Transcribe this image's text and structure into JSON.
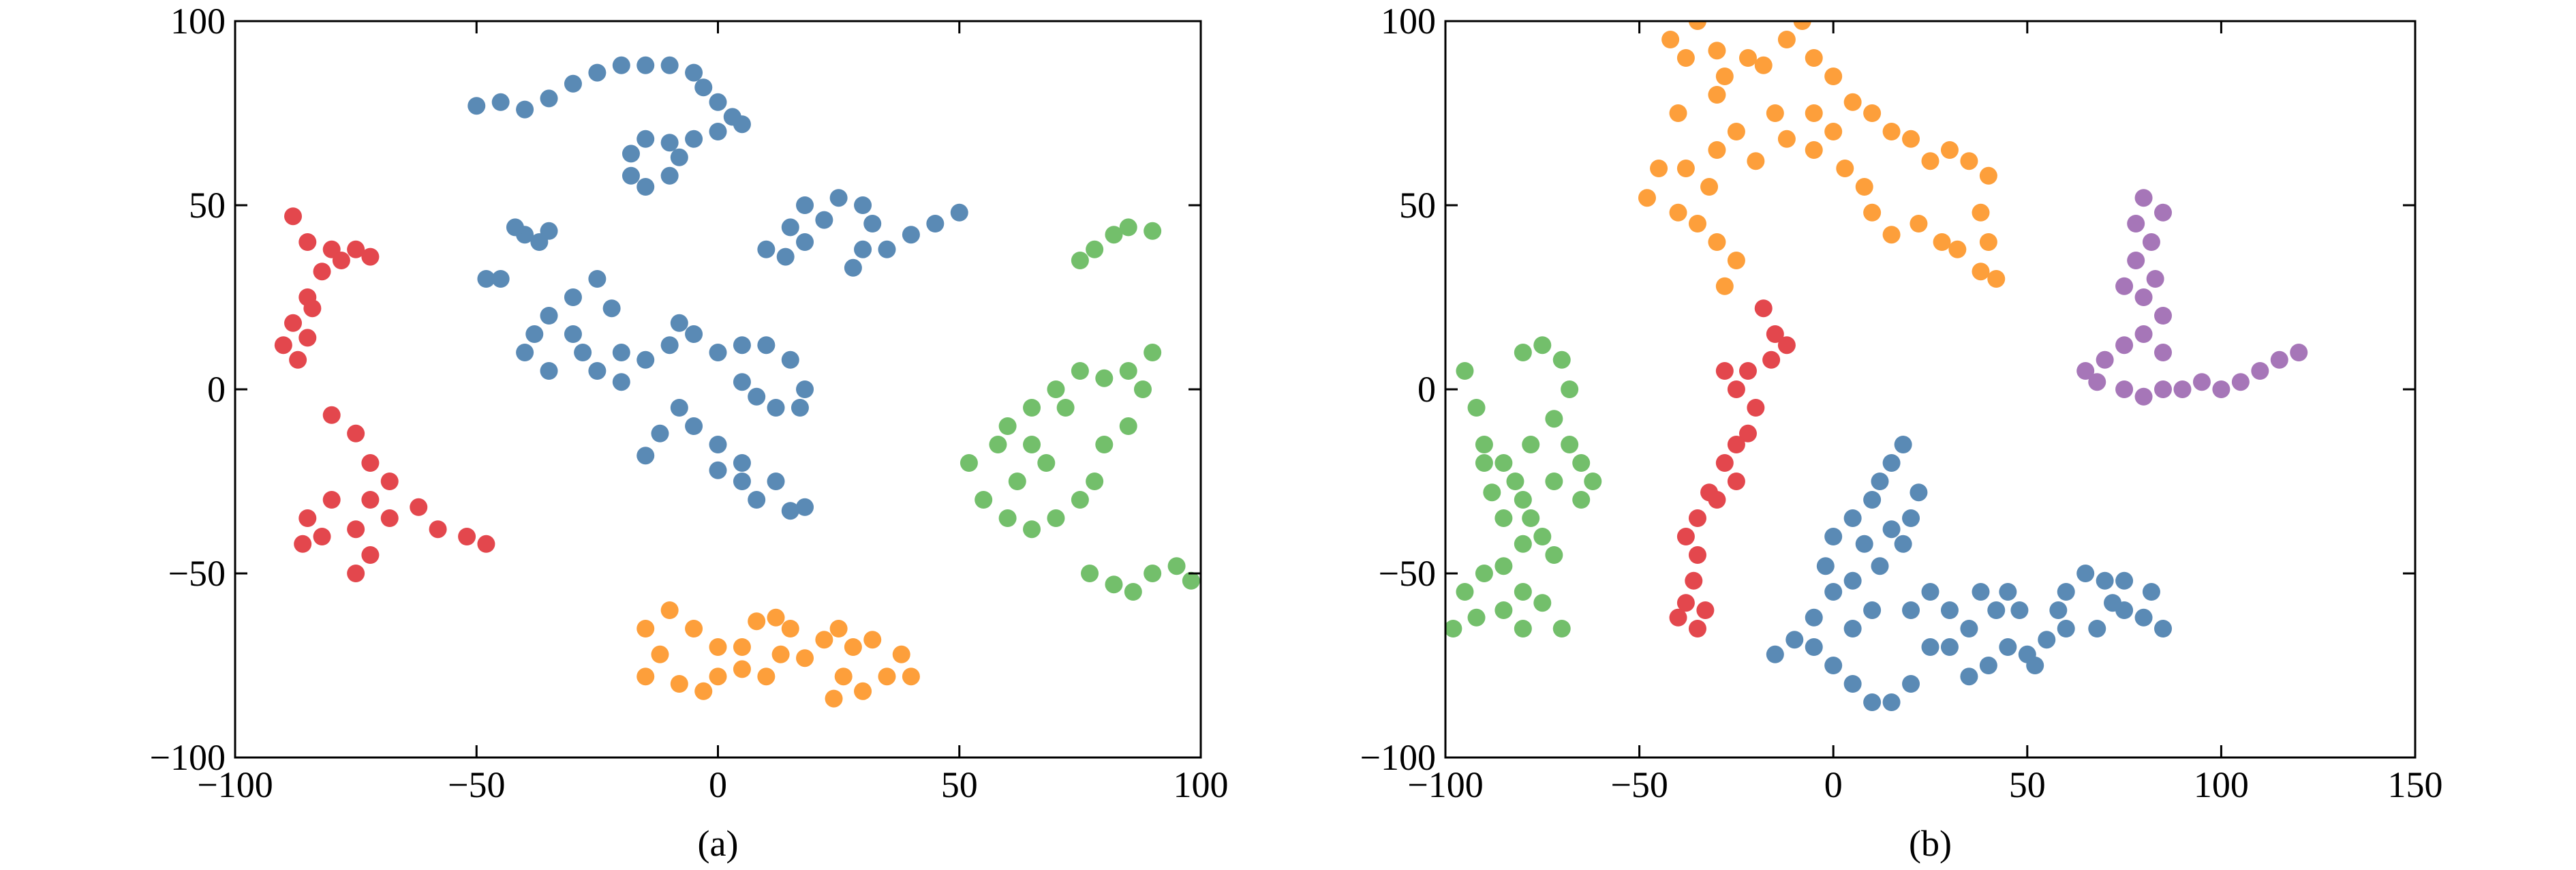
{
  "chart_data": [
    {
      "type": "scatter",
      "caption": "(a)",
      "xlim": [
        -100,
        100
      ],
      "ylim": [
        -100,
        100
      ],
      "xticks": [
        {
          "value": -100,
          "label": "−100"
        },
        {
          "value": -50,
          "label": "−50"
        },
        0,
        50,
        100
      ],
      "yticks": [
        {
          "value": -100,
          "label": "−100"
        },
        {
          "value": -50,
          "label": "−50"
        },
        0,
        50,
        100
      ],
      "series": [
        {
          "color": "#5a8ab5",
          "x": [
            -50,
            -45,
            -40,
            -35,
            -30,
            -25,
            -20,
            -15,
            -10,
            -5,
            -3,
            0,
            3,
            5,
            0,
            -5,
            -10,
            -15,
            -18,
            -18,
            -15,
            -10,
            -8,
            -40,
            -37,
            -35,
            -42,
            -48,
            -45,
            -40,
            -38,
            -35,
            -30,
            -25,
            -22,
            -28,
            -25,
            -20,
            -15,
            -10,
            -8,
            -5,
            0,
            5,
            10,
            15,
            18,
            17,
            12,
            8,
            5,
            -35,
            -30,
            -20,
            -15,
            -12,
            -8,
            -5,
            0,
            0,
            5,
            8,
            15,
            18,
            12,
            5,
            10,
            15,
            18,
            22,
            18,
            14,
            25,
            30,
            32,
            30,
            28,
            35,
            40,
            45,
            50
          ],
          "y": [
            77,
            78,
            76,
            79,
            83,
            86,
            88,
            88,
            88,
            86,
            82,
            78,
            74,
            72,
            70,
            68,
            67,
            68,
            64,
            58,
            55,
            58,
            63,
            42,
            40,
            43,
            44,
            30,
            30,
            10,
            15,
            20,
            25,
            30,
            22,
            10,
            5,
            2,
            8,
            12,
            18,
            15,
            10,
            12,
            12,
            8,
            0,
            -5,
            -5,
            -2,
            2,
            5,
            15,
            10,
            -18,
            -12,
            -5,
            -10,
            -15,
            -22,
            -25,
            -30,
            -33,
            -32,
            -25,
            -20,
            38,
            44,
            50,
            46,
            40,
            36,
            52,
            50,
            45,
            38,
            33,
            38,
            42,
            45,
            48
          ]
        },
        {
          "color": "#e3474d",
          "x": [
            -88,
            -85,
            -80,
            -78,
            -75,
            -72,
            -82,
            -85,
            -88,
            -90,
            -87,
            -85,
            -84,
            -80,
            -75,
            -72,
            -68,
            -72,
            -80,
            -85,
            -86,
            -82,
            -75,
            -72,
            -75,
            -68,
            -62,
            -58,
            -52,
            -48
          ],
          "y": [
            47,
            40,
            38,
            35,
            38,
            36,
            32,
            25,
            18,
            12,
            8,
            14,
            22,
            -7,
            -12,
            -20,
            -25,
            -30,
            -30,
            -35,
            -42,
            -40,
            -38,
            -45,
            -50,
            -35,
            -32,
            -38,
            -40,
            -42
          ]
        },
        {
          "color": "#73bf6b",
          "x": [
            78,
            82,
            85,
            90,
            75,
            52,
            58,
            60,
            65,
            70,
            75,
            80,
            85,
            90,
            88,
            85,
            80,
            78,
            75,
            70,
            65,
            60,
            55,
            62,
            68,
            72,
            65,
            77,
            82,
            86,
            90,
            95,
            98
          ],
          "y": [
            38,
            42,
            44,
            43,
            35,
            -20,
            -15,
            -10,
            -5,
            0,
            5,
            3,
            5,
            10,
            0,
            -10,
            -15,
            -25,
            -30,
            -35,
            -38,
            -35,
            -30,
            -25,
            -20,
            -5,
            -15,
            -50,
            -53,
            -55,
            -50,
            -48,
            -52
          ]
        },
        {
          "color": "#fd9f3b",
          "x": [
            -15,
            -10,
            -5,
            -12,
            -15,
            -8,
            -3,
            0,
            5,
            8,
            12,
            15,
            13,
            10,
            18,
            22,
            25,
            28,
            26,
            24,
            30,
            35,
            38,
            40,
            32,
            0,
            5
          ],
          "y": [
            -65,
            -60,
            -65,
            -72,
            -78,
            -80,
            -82,
            -78,
            -70,
            -63,
            -62,
            -65,
            -72,
            -78,
            -73,
            -68,
            -65,
            -70,
            -78,
            -84,
            -82,
            -78,
            -72,
            -78,
            -68,
            -70,
            -76
          ]
        }
      ]
    },
    {
      "type": "scatter",
      "caption": "(b)",
      "xlim": [
        -100,
        150
      ],
      "ylim": [
        -100,
        100
      ],
      "xticks": [
        {
          "value": -100,
          "label": "−100"
        },
        {
          "value": -50,
          "label": "−50"
        },
        0,
        50,
        100,
        150
      ],
      "yticks": [
        {
          "value": -100,
          "label": "−100"
        },
        {
          "value": -50,
          "label": "−50"
        },
        0,
        50,
        100
      ],
      "series": [
        {
          "color": "#fd9f3b",
          "x": [
            -42,
            -38,
            -35,
            -30,
            -28,
            -22,
            -18,
            -12,
            -8,
            -5,
            0,
            5,
            10,
            15,
            20,
            25,
            30,
            35,
            40,
            38,
            40,
            42,
            38,
            32,
            28,
            22,
            15,
            10,
            8,
            3,
            -5,
            -12,
            -20,
            -25,
            -30,
            -38,
            -45,
            -48,
            -40,
            -35,
            -30,
            -25,
            -28,
            -32,
            -15,
            -5,
            0,
            -40,
            -30
          ],
          "y": [
            95,
            90,
            100,
            92,
            85,
            90,
            88,
            95,
            100,
            90,
            85,
            78,
            75,
            70,
            68,
            62,
            65,
            62,
            58,
            48,
            40,
            30,
            32,
            38,
            40,
            45,
            42,
            48,
            55,
            60,
            65,
            68,
            62,
            70,
            65,
            60,
            60,
            52,
            48,
            45,
            40,
            35,
            28,
            55,
            75,
            75,
            70,
            75,
            80
          ]
        },
        {
          "color": "#a676b8",
          "x": [
            80,
            85,
            82,
            78,
            75,
            80,
            83,
            85,
            80,
            75,
            70,
            65,
            68,
            75,
            80,
            85,
            90,
            95,
            100,
            105,
            110,
            115,
            120,
            85,
            78
          ],
          "y": [
            52,
            48,
            40,
            35,
            28,
            25,
            30,
            20,
            15,
            12,
            8,
            5,
            2,
            0,
            -2,
            0,
            0,
            2,
            0,
            2,
            5,
            8,
            10,
            10,
            45
          ]
        },
        {
          "color": "#e3474d",
          "x": [
            -18,
            -15,
            -12,
            -16,
            -22,
            -28,
            -25,
            -20,
            -22,
            -25,
            -28,
            -32,
            -35,
            -38,
            -35,
            -36,
            -38,
            -40,
            -35,
            -33,
            -30,
            -25
          ],
          "y": [
            22,
            15,
            12,
            8,
            5,
            5,
            0,
            -5,
            -12,
            -15,
            -20,
            -28,
            -35,
            -40,
            -45,
            -52,
            -58,
            -62,
            -65,
            -60,
            -30,
            -25
          ]
        },
        {
          "color": "#73bf6b",
          "x": [
            -95,
            -92,
            -90,
            -85,
            -82,
            -80,
            -85,
            -88,
            -90,
            -80,
            -75,
            -70,
            -68,
            -72,
            -68,
            -65,
            -62,
            -65,
            -72,
            -78,
            -78,
            -80,
            -85,
            -90,
            -95,
            -98,
            -92,
            -85,
            -80,
            -75,
            -70,
            -80,
            -72,
            -75
          ],
          "y": [
            5,
            -5,
            -15,
            -20,
            -25,
            -30,
            -35,
            -28,
            -20,
            10,
            12,
            8,
            0,
            -8,
            -15,
            -20,
            -25,
            -30,
            -25,
            -15,
            -35,
            -42,
            -48,
            -50,
            -55,
            -65,
            -62,
            -60,
            -55,
            -58,
            -65,
            -65,
            -45,
            -40
          ]
        },
        {
          "color": "#5a8ab5",
          "x": [
            18,
            15,
            12,
            10,
            5,
            0,
            -2,
            5,
            12,
            18,
            20,
            22,
            15,
            8,
            0,
            -5,
            -10,
            -15,
            -5,
            0,
            5,
            10,
            15,
            20,
            25,
            30,
            38,
            42,
            45,
            48,
            45,
            40,
            35,
            30,
            35,
            50,
            55,
            58,
            60,
            65,
            70,
            72,
            75,
            80,
            85,
            82,
            75,
            68,
            60,
            52,
            25,
            20,
            10,
            5
          ],
          "y": [
            -15,
            -20,
            -25,
            -30,
            -35,
            -40,
            -48,
            -52,
            -48,
            -42,
            -35,
            -28,
            -38,
            -42,
            -55,
            -62,
            -68,
            -72,
            -70,
            -75,
            -80,
            -85,
            -85,
            -80,
            -70,
            -60,
            -55,
            -60,
            -55,
            -60,
            -70,
            -75,
            -78,
            -70,
            -65,
            -72,
            -68,
            -60,
            -55,
            -50,
            -52,
            -58,
            -60,
            -62,
            -65,
            -55,
            -52,
            -65,
            -65,
            -75,
            -55,
            -60,
            -60,
            -65
          ]
        }
      ]
    }
  ]
}
